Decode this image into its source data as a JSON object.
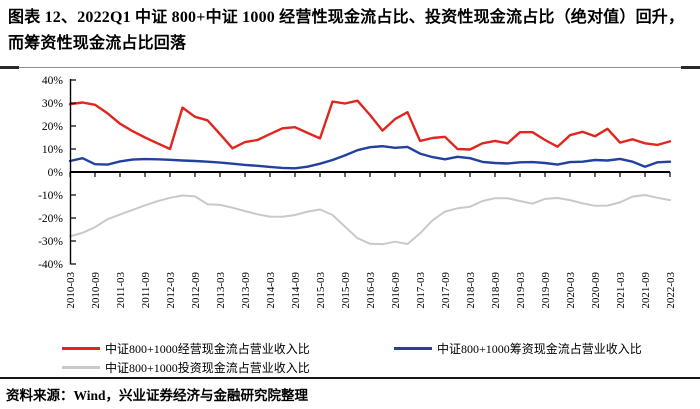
{
  "title": "图表 12、2022Q1 中证 800+中证 1000 经营性现金流占比、投资性现金流占比（绝对值）回升，而筹资性现金流占比回落",
  "source_note": "资料来源：Wind，兴业证券经济与金融研究院整理",
  "colors": {
    "operating_line": "#e1251f",
    "financing_line": "#2240a0",
    "investing_line": "#c9c9c9",
    "axis": "#000000"
  },
  "chart_data": {
    "type": "line",
    "title": "",
    "xlabel": "",
    "ylabel": "",
    "ylim": [
      -40,
      40
    ],
    "grid": false,
    "legend_position": "bottom",
    "y_ticks": [
      {
        "value": 40,
        "label": "40%"
      },
      {
        "value": 30,
        "label": "30%"
      },
      {
        "value": 20,
        "label": "20%"
      },
      {
        "value": 10,
        "label": "10%"
      },
      {
        "value": 0,
        "label": "0%"
      },
      {
        "value": -10,
        "label": "-10%"
      },
      {
        "value": -20,
        "label": "-20%"
      },
      {
        "value": -30,
        "label": "-30%"
      },
      {
        "value": -40,
        "label": "-40%"
      }
    ],
    "x_tick_labels": [
      "2010-03",
      "2010-09",
      "2011-03",
      "2011-09",
      "2012-03",
      "2012-09",
      "2013-03",
      "2013-09",
      "2014-03",
      "2014-09",
      "2015-03",
      "2015-09",
      "2016-03",
      "2016-09",
      "2017-03",
      "2017-09",
      "2018-03",
      "2018-09",
      "2019-03",
      "2019-09",
      "2020-03",
      "2020-09",
      "2021-03",
      "2021-09",
      "2022-03"
    ],
    "x_frequency": "quarterly",
    "series": [
      {
        "name": "中证800+1000经营现金流占营业收入比",
        "color": "#e1251f",
        "width": 2.4,
        "values": [
          29.5,
          30.2,
          29.2,
          25.5,
          21.0,
          17.8,
          15.0,
          12.5,
          10.0,
          28.0,
          24.0,
          22.5,
          16.5,
          10.3,
          13.0,
          13.9,
          16.5,
          19.0,
          19.5,
          17.0,
          14.6,
          30.6,
          29.8,
          31.0,
          24.8,
          18.0,
          23.0,
          26.0,
          13.5,
          14.8,
          15.3,
          10.0,
          9.8,
          12.5,
          13.5,
          12.5,
          17.3,
          17.3,
          13.9,
          11.0,
          16.0,
          17.5,
          15.5,
          18.8,
          12.8,
          14.2,
          12.5,
          11.8,
          13.3
        ]
      },
      {
        "name": "中证800+1000筹资现金流占营业收入比",
        "color": "#2240a0",
        "width": 2.4,
        "values": [
          4.8,
          6.0,
          3.4,
          3.2,
          4.6,
          5.4,
          5.6,
          5.5,
          5.3,
          5.0,
          4.8,
          4.5,
          4.1,
          3.6,
          3.1,
          2.7,
          2.2,
          1.8,
          1.6,
          2.3,
          3.6,
          5.2,
          7.2,
          9.5,
          10.8,
          11.2,
          10.5,
          10.9,
          8.0,
          6.5,
          5.5,
          6.6,
          6.0,
          4.4,
          3.9,
          3.7,
          4.2,
          4.3,
          3.9,
          3.2,
          4.3,
          4.5,
          5.2,
          5.0,
          5.7,
          4.5,
          2.3,
          4.2,
          4.5
        ]
      },
      {
        "name": "中证800+1000投资现金流占营业收入比",
        "color": "#c9c9c9",
        "width": 2.0,
        "values": [
          -28.0,
          -26.5,
          -24.0,
          -20.5,
          -18.5,
          -16.5,
          -14.5,
          -12.7,
          -11.2,
          -10.2,
          -10.6,
          -14.0,
          -14.3,
          -15.5,
          -17.0,
          -18.4,
          -19.4,
          -19.5,
          -18.7,
          -17.2,
          -16.3,
          -18.7,
          -23.8,
          -28.8,
          -31.2,
          -31.4,
          -30.3,
          -31.3,
          -26.7,
          -21.0,
          -17.2,
          -15.8,
          -15.1,
          -12.6,
          -11.4,
          -11.4,
          -12.6,
          -13.8,
          -11.7,
          -11.3,
          -12.2,
          -13.6,
          -14.7,
          -14.6,
          -13.2,
          -10.7,
          -10.0,
          -11.2,
          -12.2
        ]
      }
    ]
  }
}
